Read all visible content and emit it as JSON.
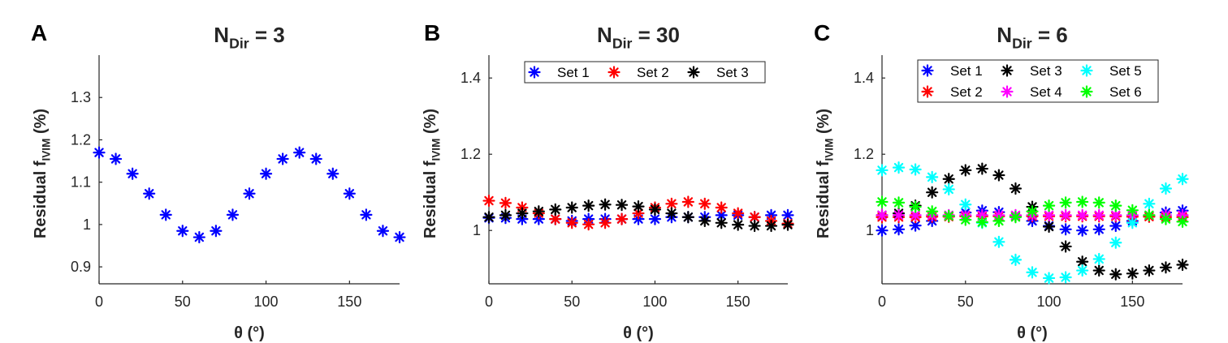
{
  "figure": {
    "panel_labels": [
      "A",
      "B",
      "C"
    ]
  },
  "chart_data": [
    {
      "type": "scatter",
      "panel": "A",
      "title": "N",
      "title_sub": "Dir",
      "title_suffix": " = 3",
      "xlabel": "θ (°)",
      "ylabel": "Residual f",
      "ylabel_sub": "IVIM",
      "ylabel_suffix": " (%)",
      "xlim": [
        0,
        180
      ],
      "ylim": [
        0.86,
        1.4
      ],
      "xticks": [
        0,
        50,
        100,
        150
      ],
      "yticks": [
        0.9,
        1,
        1.1,
        1.2,
        1.3
      ],
      "ytick_labels": [
        "0.9",
        "1",
        "1.1",
        "1.2",
        "1.3"
      ],
      "x": [
        0,
        10,
        20,
        30,
        40,
        50,
        60,
        70,
        80,
        90,
        100,
        110,
        120,
        130,
        140,
        150,
        160,
        170,
        180
      ],
      "series": [
        {
          "color": "#0000ff",
          "values": [
            1.17,
            1.155,
            1.12,
            1.073,
            1.023,
            0.985,
            0.97,
            0.985,
            1.023,
            1.073,
            1.12,
            1.155,
            1.17,
            1.155,
            1.12,
            1.073,
            1.023,
            0.985,
            0.97
          ]
        }
      ]
    },
    {
      "type": "scatter",
      "panel": "B",
      "title": "N",
      "title_sub": "Dir",
      "title_suffix": " = 30",
      "xlabel": "θ (°)",
      "ylabel": "Residual f",
      "ylabel_sub": "IVIM",
      "ylabel_suffix": " (%)",
      "xlim": [
        0,
        180
      ],
      "ylim": [
        0.86,
        1.46
      ],
      "xticks": [
        0,
        50,
        100,
        150
      ],
      "yticks": [
        1,
        1.2,
        1.4
      ],
      "ytick_labels": [
        "1",
        "1.2",
        "1.4"
      ],
      "legend_position": "top",
      "legend_rows": 1,
      "x": [
        0,
        10,
        20,
        30,
        40,
        50,
        60,
        70,
        80,
        90,
        100,
        110,
        120,
        130,
        140,
        150,
        160,
        170,
        180
      ],
      "series": [
        {
          "name": "Set 1",
          "color": "#0000ff",
          "values": [
            1.033,
            1.033,
            1.03,
            1.03,
            1.03,
            1.025,
            1.03,
            1.03,
            1.03,
            1.03,
            1.03,
            1.035,
            1.035,
            1.035,
            1.04,
            1.04,
            1.035,
            1.04,
            1.04
          ]
        },
        {
          "name": "Set 2",
          "color": "#ff0000",
          "values": [
            1.078,
            1.072,
            1.06,
            1.045,
            1.03,
            1.02,
            1.016,
            1.02,
            1.03,
            1.045,
            1.06,
            1.07,
            1.075,
            1.07,
            1.06,
            1.045,
            1.035,
            1.025,
            1.018
          ]
        },
        {
          "name": "Set 3",
          "color": "#000000",
          "values": [
            1.035,
            1.04,
            1.045,
            1.05,
            1.055,
            1.06,
            1.065,
            1.068,
            1.067,
            1.063,
            1.055,
            1.045,
            1.035,
            1.025,
            1.02,
            1.015,
            1.012,
            1.012,
            1.015
          ]
        }
      ]
    },
    {
      "type": "scatter",
      "panel": "C",
      "title": "N",
      "title_sub": "Dir",
      "title_suffix": " = 6",
      "xlabel": "θ (°)",
      "ylabel": "Residual f",
      "ylabel_sub": "IVIM",
      "ylabel_suffix": " (%)",
      "xlim": [
        0,
        180
      ],
      "ylim": [
        0.86,
        1.46
      ],
      "xticks": [
        0,
        50,
        100,
        150
      ],
      "yticks": [
        1,
        1.2,
        1.4
      ],
      "ytick_labels": [
        "1",
        "1.2",
        "1.4"
      ],
      "legend_position": "top-right",
      "legend_rows": 2,
      "x": [
        0,
        10,
        20,
        30,
        40,
        50,
        60,
        70,
        80,
        90,
        100,
        110,
        120,
        130,
        140,
        150,
        160,
        170,
        180
      ],
      "series": [
        {
          "name": "Set 1",
          "color": "#0000ff",
          "values": [
            1.0,
            1.003,
            1.013,
            1.025,
            1.038,
            1.047,
            1.052,
            1.048,
            1.038,
            1.025,
            1.012,
            1.003,
            1.0,
            1.003,
            1.012,
            1.025,
            1.038,
            1.047,
            1.052
          ]
        },
        {
          "name": "Set 2",
          "color": "#ff0000",
          "values": [
            1.035,
            1.035,
            1.035,
            1.036,
            1.036,
            1.037,
            1.037,
            1.037,
            1.037,
            1.037,
            1.037,
            1.037,
            1.037,
            1.037,
            1.037,
            1.036,
            1.036,
            1.035,
            1.035
          ]
        },
        {
          "name": "Set 3",
          "color": "#000000",
          "values": [
            1.04,
            1.045,
            1.065,
            1.1,
            1.135,
            1.158,
            1.162,
            1.145,
            1.11,
            1.062,
            1.01,
            0.958,
            0.918,
            0.895,
            0.885,
            0.887,
            0.895,
            0.903,
            0.91
          ]
        },
        {
          "name": "Set 4",
          "color": "#ff00ff",
          "values": [
            1.04,
            1.04,
            1.04,
            1.04,
            1.04,
            1.04,
            1.04,
            1.04,
            1.04,
            1.04,
            1.04,
            1.04,
            1.04,
            1.04,
            1.04,
            1.04,
            1.04,
            1.04,
            1.04
          ]
        },
        {
          "name": "Set 5",
          "color": "#00ffff",
          "values": [
            1.158,
            1.165,
            1.16,
            1.14,
            1.108,
            1.068,
            1.02,
            0.97,
            0.923,
            0.89,
            0.875,
            0.877,
            0.895,
            0.925,
            0.968,
            1.02,
            1.07,
            1.11,
            1.135
          ]
        },
        {
          "name": "Set 6",
          "color": "#00ff00",
          "values": [
            1.075,
            1.073,
            1.062,
            1.05,
            1.038,
            1.028,
            1.022,
            1.025,
            1.035,
            1.05,
            1.065,
            1.073,
            1.075,
            1.073,
            1.065,
            1.053,
            1.04,
            1.03,
            1.023
          ]
        }
      ]
    }
  ]
}
